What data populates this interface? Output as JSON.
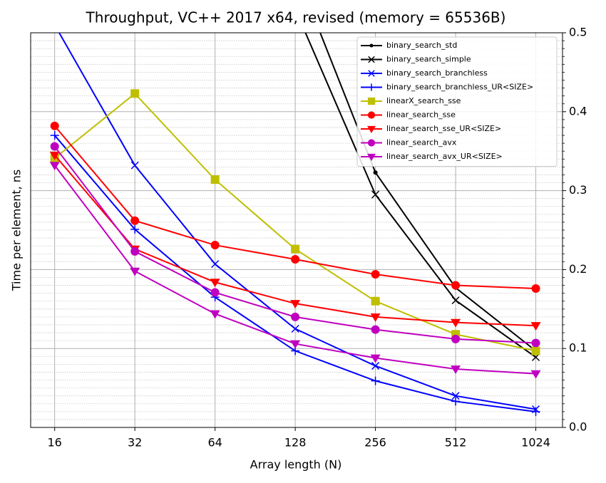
{
  "chart_data": {
    "type": "line",
    "title": "Throughput, VC++ 2017 x64, revised (memory = 65536B)",
    "x_label": "Array length (N)",
    "y_label": "Time per element, ns",
    "x": [
      16,
      32,
      64,
      128,
      256,
      512,
      1024
    ],
    "xscale": "log",
    "xlim": [
      13,
      1290
    ],
    "xticks": [
      16,
      32,
      64,
      128,
      256,
      512,
      1024
    ],
    "ylim": [
      0,
      0.5
    ],
    "yticks": [
      {
        "value": 0,
        "label": "0.0"
      },
      0.1,
      0.2,
      0.3,
      0.4,
      0.5
    ],
    "minor_yticks": [
      0.01,
      0.02,
      0.03,
      0.04,
      0.05,
      0.06,
      0.07,
      0.08,
      0.09,
      0.11,
      0.12,
      0.13,
      0.14,
      0.15,
      0.16,
      0.17,
      0.18,
      0.19,
      0.21,
      0.22,
      0.23,
      0.24,
      0.25,
      0.26,
      0.27,
      0.28,
      0.29,
      0.31,
      0.32,
      0.33,
      0.34,
      0.35,
      0.36,
      0.37,
      0.38,
      0.39,
      0.41,
      0.42,
      0.43,
      0.44,
      0.45,
      0.46,
      0.47,
      0.48,
      0.49
    ],
    "y_axis_side": "right",
    "grid": true,
    "legend": "upper right",
    "series": [
      {
        "name": "binary_search_std",
        "color": "#000000",
        "marker": "dot",
        "values": [
          null,
          null,
          null,
          0.58,
          0.323,
          0.177,
          0.097
        ]
      },
      {
        "name": "binary_search_simple",
        "color": "#000000",
        "marker": "x",
        "values": [
          null,
          null,
          null,
          0.53,
          0.295,
          0.161,
          0.089
        ]
      },
      {
        "name": "binary_search_branchless",
        "color": "#0000ff",
        "marker": "x",
        "values": [
          0.51,
          0.332,
          0.207,
          0.125,
          0.078,
          0.04,
          0.023
        ]
      },
      {
        "name": "binary_search_branchless_UR<SIZE>",
        "color": "#0000ff",
        "marker": "plus",
        "values": [
          0.37,
          0.251,
          0.165,
          0.097,
          0.059,
          0.033,
          0.02
        ]
      },
      {
        "name": "linearX_search_sse",
        "color": "#bfbf00",
        "marker": "square",
        "values": [
          0.341,
          0.423,
          0.314,
          0.226,
          0.16,
          0.118,
          0.097
        ]
      },
      {
        "name": "linear_search_sse",
        "color": "#ff0000",
        "marker": "circle",
        "values": [
          0.382,
          0.262,
          0.231,
          0.213,
          0.194,
          0.18,
          0.176
        ]
      },
      {
        "name": "linear_search_sse_UR<SIZE>",
        "color": "#ff0000",
        "marker": "tri",
        "values": [
          0.345,
          0.226,
          0.184,
          0.157,
          0.14,
          0.133,
          0.129
        ]
      },
      {
        "name": "linear_search_avx",
        "color": "#bf00bf",
        "marker": "circle",
        "values": [
          0.356,
          0.223,
          0.171,
          0.14,
          0.124,
          0.112,
          0.107
        ]
      },
      {
        "name": "linear_search_avx_UR<SIZE>",
        "color": "#bf00bf",
        "marker": "tri",
        "values": [
          0.332,
          0.198,
          0.144,
          0.106,
          0.088,
          0.074,
          0.068
        ]
      }
    ]
  }
}
